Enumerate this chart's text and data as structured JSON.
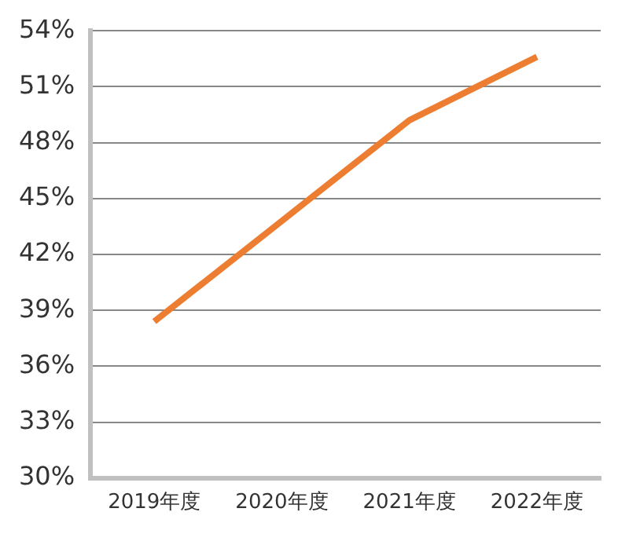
{
  "chart_data": {
    "type": "line",
    "categories": [
      "2019年度",
      "2020年度",
      "2021年度",
      "2022年度"
    ],
    "series": [
      {
        "color": "#ed7d31",
        "values": [
          38.4,
          43.8,
          49.2,
          52.6
        ]
      }
    ],
    "ylim": [
      30,
      54
    ],
    "yticks": [
      {
        "value": 30,
        "label": "30%"
      },
      {
        "value": 33,
        "label": "33%"
      },
      {
        "value": 36,
        "label": "36%"
      },
      {
        "value": 39,
        "label": "39%"
      },
      {
        "value": 42,
        "label": "42%"
      },
      {
        "value": 45,
        "label": "45%"
      },
      {
        "value": 48,
        "label": "48%"
      },
      {
        "value": 51,
        "label": "51%"
      },
      {
        "value": 54,
        "label": "54%"
      }
    ],
    "grid": "y",
    "legend": false,
    "marker": "none",
    "line_style": "solid"
  }
}
